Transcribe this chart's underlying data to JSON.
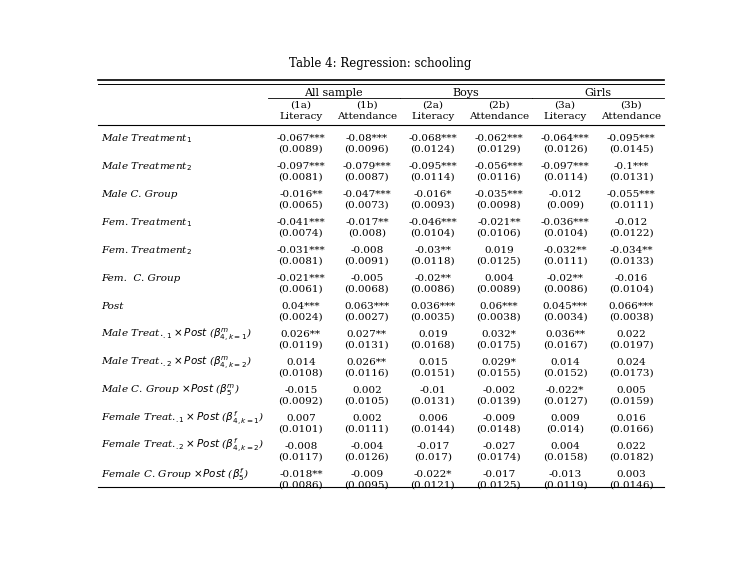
{
  "title": "Table 4: Regression: schooling",
  "rows": [
    {
      "label": "Male Treatment$_1$",
      "values": [
        "-0.067***",
        "-0.08***",
        "-0.068***",
        "-0.062***",
        "-0.064***",
        "-0.095***"
      ],
      "se": [
        "(0.0089)",
        "(0.0096)",
        "(0.0124)",
        "(0.0129)",
        "(0.0126)",
        "(0.0145)"
      ]
    },
    {
      "label": "Male Treatment$_2$",
      "values": [
        "-0.097***",
        "-0.079***",
        "-0.095***",
        "-0.056***",
        "-0.097***",
        "-0.1***"
      ],
      "se": [
        "(0.0081)",
        "(0.0087)",
        "(0.0114)",
        "(0.0116)",
        "(0.0114)",
        "(0.0131)"
      ]
    },
    {
      "label": "Male C. Group",
      "values": [
        "-0.016**",
        "-0.047***",
        "-0.016*",
        "-0.035***",
        "-0.012",
        "-0.055***"
      ],
      "se": [
        "(0.0065)",
        "(0.0073)",
        "(0.0093)",
        "(0.0098)",
        "(0.009)",
        "(0.0111)"
      ]
    },
    {
      "label": "Fem. Treatment$_1$",
      "values": [
        "-0.041***",
        "-0.017**",
        "-0.046***",
        "-0.021**",
        "-0.036***",
        "-0.012"
      ],
      "se": [
        "(0.0074)",
        "(0.008)",
        "(0.0104)",
        "(0.0106)",
        "(0.0104)",
        "(0.0122)"
      ]
    },
    {
      "label": "Fem. Treatment$_2$",
      "values": [
        "-0.031***",
        "-0.008",
        "-0.03**",
        "0.019",
        "-0.032**",
        "-0.034**"
      ],
      "se": [
        "(0.0081)",
        "(0.0091)",
        "(0.0118)",
        "(0.0125)",
        "(0.0111)",
        "(0.0133)"
      ]
    },
    {
      "label": "Fem.  C. Group",
      "values": [
        "-0.021***",
        "-0.005",
        "-0.02**",
        "0.004",
        "-0.02**",
        "-0.016"
      ],
      "se": [
        "(0.0061)",
        "(0.0068)",
        "(0.0086)",
        "(0.0089)",
        "(0.0086)",
        "(0.0104)"
      ]
    },
    {
      "label": "Post",
      "values": [
        "0.04***",
        "0.063***",
        "0.036***",
        "0.06***",
        "0.045***",
        "0.066***"
      ],
      "se": [
        "(0.0024)",
        "(0.0027)",
        "(0.0035)",
        "(0.0038)",
        "(0.0034)",
        "(0.0038)"
      ]
    },
    {
      "label": "Male Treat.$_{.1}\\times Post$ ($\\beta^m_{4,k=1}$)",
      "values": [
        "0.026**",
        "0.027**",
        "0.019",
        "0.032*",
        "0.036**",
        "0.022"
      ],
      "se": [
        "(0.0119)",
        "(0.0131)",
        "(0.0168)",
        "(0.0175)",
        "(0.0167)",
        "(0.0197)"
      ]
    },
    {
      "label": "Male Treat.$_{.2}\\times Post$ ($\\beta^m_{4,k=2}$)",
      "values": [
        "0.014",
        "0.026**",
        "0.015",
        "0.029*",
        "0.014",
        "0.024"
      ],
      "se": [
        "(0.0108)",
        "(0.0116)",
        "(0.0151)",
        "(0.0155)",
        "(0.0152)",
        "(0.0173)"
      ]
    },
    {
      "label": "Male C. Group $\\times Post$ ($\\beta^m_5$)",
      "values": [
        "-0.015",
        "0.002",
        "-0.01",
        "-0.002",
        "-0.022*",
        "0.005"
      ],
      "se": [
        "(0.0092)",
        "(0.0105)",
        "(0.0131)",
        "(0.0139)",
        "(0.0127)",
        "(0.0159)"
      ]
    },
    {
      "label": "Female Treat.$_{.1}\\times Post$ ($\\beta^f_{4,k=1}$)",
      "values": [
        "0.007",
        "0.002",
        "0.006",
        "-0.009",
        "0.009",
        "0.016"
      ],
      "se": [
        "(0.0101)",
        "(0.0111)",
        "(0.0144)",
        "(0.0148)",
        "(0.014)",
        "(0.0166)"
      ]
    },
    {
      "label": "Female Treat.$_{.2}\\times Post$ ($\\beta^f_{4,k=2}$)",
      "values": [
        "-0.008",
        "-0.004",
        "-0.017",
        "-0.027",
        "0.004",
        "0.022"
      ],
      "se": [
        "(0.0117)",
        "(0.0126)",
        "(0.017)",
        "(0.0174)",
        "(0.0158)",
        "(0.0182)"
      ]
    },
    {
      "label": "Female C. Group $\\times Post$ ($\\beta^f_5$)",
      "values": [
        "-0.018**",
        "-0.009",
        "-0.022*",
        "-0.017",
        "-0.013",
        "0.003"
      ],
      "se": [
        "(0.0086)",
        "(0.0095)",
        "(0.0121)",
        "(0.0125)",
        "(0.0119)",
        "(0.0146)"
      ]
    }
  ],
  "col_headers_line1": [
    "(1a)",
    "(1b)",
    "(2a)",
    "(2b)",
    "(3a)",
    "(3b)"
  ],
  "col_headers_line2": [
    "Literacy",
    "Attendance",
    "Literacy",
    "Attendance",
    "Literacy",
    "Attendance"
  ],
  "group_labels": [
    "All sample",
    "Boys",
    "Girls"
  ],
  "font_size": 7.5
}
